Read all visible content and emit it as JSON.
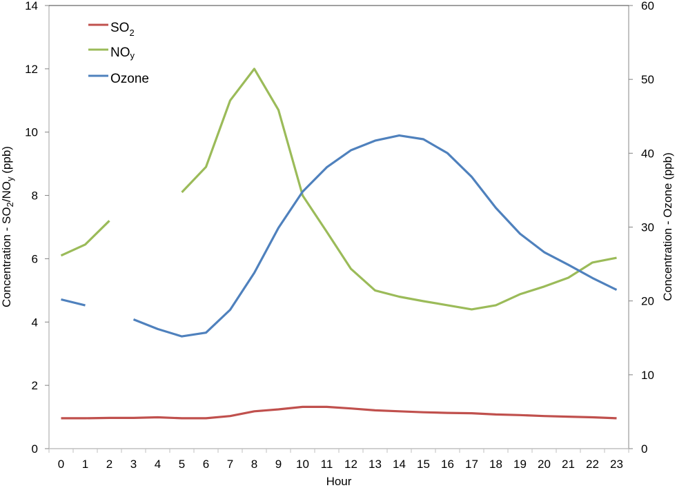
{
  "chart_data": {
    "type": "line",
    "title": "",
    "xlabel": "Hour",
    "ylabel_left": "Concentration - SO2/NOy (ppb)",
    "ylabel_right": "Concentration - Ozone (ppb)",
    "ylim_left": [
      0,
      14
    ],
    "ylim_right": [
      0,
      60
    ],
    "yticks_left": [
      0,
      2,
      4,
      6,
      8,
      10,
      12,
      14
    ],
    "yticks_right": [
      0,
      10,
      20,
      30,
      40,
      50,
      60
    ],
    "grid": false,
    "legend_position": "upper-left",
    "categories": [
      0,
      1,
      2,
      3,
      4,
      5,
      6,
      7,
      8,
      9,
      10,
      11,
      12,
      13,
      14,
      15,
      16,
      17,
      18,
      19,
      20,
      21,
      22,
      23
    ],
    "series": [
      {
        "name": "SO2",
        "axis": "left",
        "color": "#c0504d",
        "values": [
          0.96,
          0.96,
          0.97,
          0.97,
          0.99,
          0.96,
          0.96,
          1.03,
          1.18,
          1.24,
          1.32,
          1.32,
          1.27,
          1.21,
          1.18,
          1.15,
          1.13,
          1.12,
          1.08,
          1.06,
          1.03,
          1.01,
          0.99,
          0.96
        ]
      },
      {
        "name": "NOy",
        "axis": "left",
        "color": "#9bbb59",
        "values": [
          6.1,
          6.45,
          7.2,
          null,
          null,
          8.1,
          8.9,
          11.0,
          12.0,
          10.7,
          8.0,
          6.85,
          5.68,
          5.0,
          4.8,
          4.66,
          4.53,
          4.4,
          4.53,
          4.88,
          5.12,
          5.4,
          5.88,
          6.03
        ]
      },
      {
        "name": "Ozone",
        "axis": "right",
        "color": "#4f81bd",
        "values": [
          20.2,
          19.4,
          null,
          17.5,
          16.2,
          15.2,
          15.7,
          18.8,
          23.8,
          29.9,
          34.8,
          38.1,
          40.4,
          41.7,
          42.4,
          41.9,
          40.0,
          36.8,
          32.6,
          29.1,
          26.6,
          24.9,
          23.1,
          21.5
        ]
      }
    ]
  },
  "legend": {
    "items": [
      {
        "label_main": "SO",
        "label_sub": "2",
        "color": "#c0504d"
      },
      {
        "label_main": "NO",
        "label_sub": "y",
        "color": "#9bbb59"
      },
      {
        "label_main": "Ozone",
        "label_sub": "",
        "color": "#4f81bd"
      }
    ]
  },
  "axes": {
    "x_title": "Hour",
    "left_title_parts": [
      "Concentration - SO",
      "2",
      "/NO",
      "y",
      " (ppb)"
    ],
    "right_title": "Concentration - Ozone (ppb)"
  }
}
